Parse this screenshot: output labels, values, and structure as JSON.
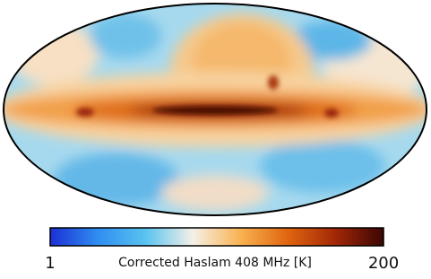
{
  "colorbar": {
    "label": "Corrected Haslam 408 MHz [K]",
    "lim": [
      1,
      200
    ],
    "ticks": [
      1,
      200
    ],
    "scale": "log",
    "colors": [
      "#1c2fd6",
      "#2f8ef0",
      "#59c3f0",
      "#f5f0e6",
      "#f8b250",
      "#e0640f",
      "#a12707",
      "#3a0604"
    ]
  }
}
